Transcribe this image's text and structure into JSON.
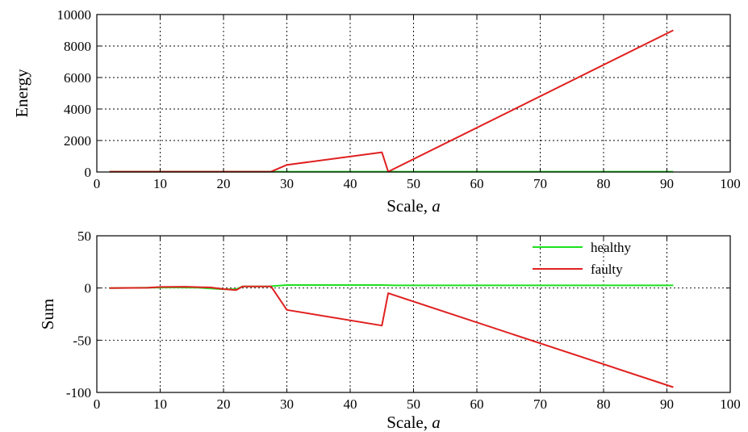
{
  "chart_data": [
    {
      "type": "line",
      "title": "",
      "xlabel": "Scale, ",
      "xlabel_italic": "a",
      "ylabel": "Energy",
      "xlim": [
        0,
        100
      ],
      "ylim": [
        0,
        10000
      ],
      "xticks": [
        0,
        10,
        20,
        30,
        40,
        50,
        60,
        70,
        80,
        90,
        100
      ],
      "yticks": [
        0,
        2000,
        4000,
        6000,
        8000,
        10000
      ],
      "grid": true,
      "legend": null,
      "series": [
        {
          "color": "#1fe01f",
          "points": [
            [
              2,
              20
            ],
            [
              91,
              20
            ]
          ]
        },
        {
          "color": "#e02020",
          "points": [
            [
              2,
              20
            ],
            [
              27.5,
              20
            ],
            [
              30,
              450
            ],
            [
              45,
              1250
            ],
            [
              46,
              20
            ],
            [
              91,
              9000
            ]
          ]
        }
      ]
    },
    {
      "type": "line",
      "title": "",
      "xlabel": "Scale, ",
      "xlabel_italic": "a",
      "ylabel": "Sum",
      "xlim": [
        0,
        100
      ],
      "ylim": [
        -100,
        50
      ],
      "xticks": [
        0,
        10,
        20,
        30,
        40,
        50,
        60,
        70,
        80,
        90,
        100
      ],
      "yticks": [
        -100,
        -50,
        0,
        50
      ],
      "grid": true,
      "legend": "top-right",
      "series": [
        {
          "name": "healthy",
          "color": "#1fe01f",
          "points": [
            [
              2,
              0
            ],
            [
              8,
              0.3
            ],
            [
              12,
              0.5
            ],
            [
              16,
              0.3
            ],
            [
              18,
              -0.5
            ],
            [
              20,
              -1.2
            ],
            [
              22,
              -1
            ],
            [
              23,
              1.5
            ],
            [
              25,
              1.5
            ],
            [
              27,
              1.5
            ],
            [
              30,
              2.8
            ],
            [
              45,
              2.8
            ],
            [
              47,
              2.5
            ],
            [
              91,
              2.5
            ]
          ]
        },
        {
          "name": "faulty",
          "color": "#e02020",
          "points": [
            [
              2,
              0
            ],
            [
              8,
              0.2
            ],
            [
              10,
              1
            ],
            [
              14,
              1.2
            ],
            [
              18,
              0.5
            ],
            [
              20,
              -1
            ],
            [
              22,
              -2
            ],
            [
              23,
              1.5
            ],
            [
              26,
              1.5
            ],
            [
              27.5,
              1.5
            ],
            [
              30,
              -21
            ],
            [
              45,
              -36
            ],
            [
              46,
              -5
            ],
            [
              91,
              -95
            ]
          ]
        }
      ]
    }
  ]
}
